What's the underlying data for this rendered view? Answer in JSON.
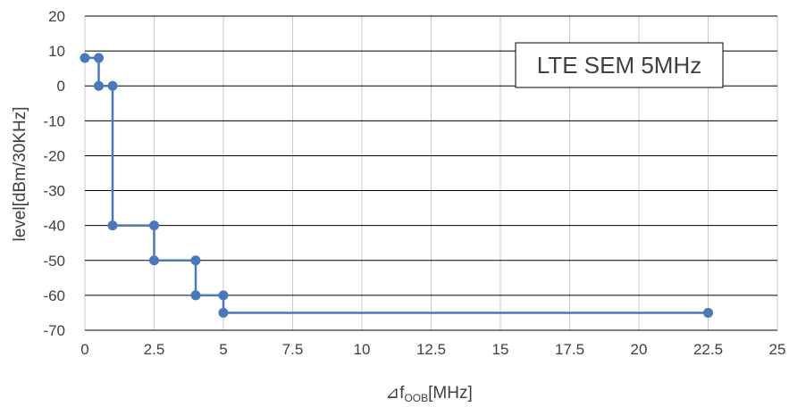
{
  "chart_data": {
    "type": "line",
    "title": "LTE SEM 5MHz",
    "xlabel": "⊿f",
    "xlabel_sub": "OOB",
    "xlabel_unit": "[MHz]",
    "ylabel": "level[dBm/30KHz]",
    "xlim": [
      0,
      25
    ],
    "ylim": [
      -70,
      20
    ],
    "grid": {
      "x": true,
      "y": true
    },
    "colors": {
      "series": "#4a78b8",
      "grid_major": "#000000",
      "grid_minor": "#c8c8c8"
    },
    "x_ticks": [
      "0",
      "2.5",
      "5",
      "7.5",
      "10",
      "12.5",
      "15",
      "17.5",
      "20",
      "22.5",
      "25"
    ],
    "y_ticks": [
      "20",
      "10",
      "0",
      "-10",
      "-20",
      "-30",
      "-40",
      "-50",
      "-60",
      "-70"
    ],
    "series": [
      {
        "x": [
          0,
          0.5,
          0.5,
          1,
          1,
          2.5,
          2.5,
          4,
          4,
          5,
          5,
          22.5
        ],
        "y": [
          8,
          8,
          0,
          0,
          -40,
          -40,
          -50,
          -50,
          -60,
          -60,
          -65,
          -65
        ]
      }
    ]
  }
}
